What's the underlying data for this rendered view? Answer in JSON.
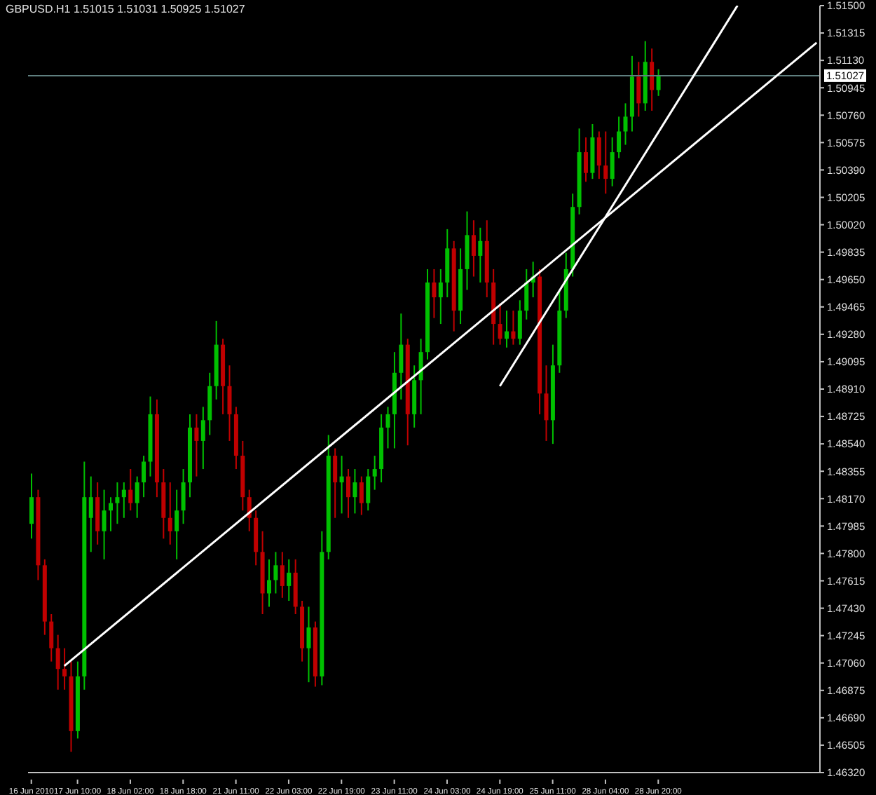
{
  "chart_data": {
    "type": "candlestick",
    "title": "GBPUSD.H1  1.51015 1.51031 1.50925 1.51027",
    "categories": [
      "16 Jun 2010",
      null,
      null,
      null,
      null,
      null,
      null,
      "17 Jun 10:00",
      null,
      null,
      null,
      null,
      null,
      null,
      null,
      "18 Jun 02:00",
      null,
      null,
      null,
      null,
      null,
      null,
      null,
      "18 Jun 18:00",
      null,
      null,
      null,
      null,
      null,
      null,
      null,
      "21 Jun 11:00",
      null,
      null,
      null,
      null,
      null,
      null,
      null,
      "22 Jun 03:00",
      null,
      null,
      null,
      null,
      null,
      null,
      null,
      "22 Jun 19:00",
      null,
      null,
      null,
      null,
      null,
      null,
      null,
      "23 Jun 11:00",
      null,
      null,
      null,
      null,
      null,
      null,
      null,
      "24 Jun 03:00",
      null,
      null,
      null,
      null,
      null,
      null,
      null,
      "24 Jun 19:00",
      null,
      null,
      null,
      null,
      null,
      null,
      null,
      "25 Jun 11:00",
      null,
      null,
      null,
      null,
      null,
      null,
      null,
      "28 Jun 04:00",
      null,
      null,
      null,
      null,
      null,
      null,
      null,
      "28 Jun 20:00",
      null,
      null,
      null,
      null,
      null,
      null,
      null,
      null,
      null,
      null,
      null,
      null,
      null,
      null,
      null,
      null,
      null,
      null,
      null,
      null,
      null,
      null,
      null,
      null
    ],
    "ohlc": [
      [
        1.48,
        1.4834,
        1.479,
        1.4818
      ],
      [
        1.4818,
        1.4823,
        1.4762,
        1.4772
      ],
      [
        1.4772,
        1.4776,
        1.4725,
        1.4734
      ],
      [
        1.4734,
        1.4739,
        1.4707,
        1.4716
      ],
      [
        1.4716,
        1.4725,
        1.4688,
        1.4702
      ],
      [
        1.4702,
        1.4716,
        1.4688,
        1.4697
      ],
      [
        1.4697,
        1.4707,
        1.4646,
        1.466
      ],
      [
        1.466,
        1.4707,
        1.4655,
        1.4697
      ],
      [
        1.4697,
        1.4842,
        1.4688,
        1.4818
      ],
      [
        1.4804,
        1.4832,
        1.4781,
        1.4818
      ],
      [
        1.4818,
        1.4828,
        1.4786,
        1.4795
      ],
      [
        1.4795,
        1.4823,
        1.4776,
        1.4809
      ],
      [
        1.4809,
        1.4818,
        1.4795,
        1.4814
      ],
      [
        1.4814,
        1.4828,
        1.48,
        1.4818
      ],
      [
        1.4818,
        1.4828,
        1.4804,
        1.4823
      ],
      [
        1.4823,
        1.4837,
        1.4809,
        1.4814
      ],
      [
        1.4814,
        1.4832,
        1.4804,
        1.4828
      ],
      [
        1.4828,
        1.4846,
        1.4818,
        1.4842
      ],
      [
        1.4842,
        1.4886,
        1.4832,
        1.4874
      ],
      [
        1.4874,
        1.4884,
        1.4818,
        1.4828
      ],
      [
        1.4828,
        1.4837,
        1.479,
        1.4804
      ],
      [
        1.4804,
        1.4828,
        1.4786,
        1.4795
      ],
      [
        1.4795,
        1.4823,
        1.4776,
        1.4809
      ],
      [
        1.4809,
        1.4837,
        1.48,
        1.4828
      ],
      [
        1.4828,
        1.4874,
        1.4818,
        1.4865
      ],
      [
        1.4865,
        1.4874,
        1.4832,
        1.4856
      ],
      [
        1.4856,
        1.4879,
        1.4837,
        1.487
      ],
      [
        1.487,
        1.4902,
        1.486,
        1.4893
      ],
      [
        1.4893,
        1.4937,
        1.4884,
        1.4921
      ],
      [
        1.4921,
        1.4925,
        1.4874,
        1.4893
      ],
      [
        1.4893,
        1.4907,
        1.4856,
        1.4874
      ],
      [
        1.4874,
        1.4879,
        1.4837,
        1.4846
      ],
      [
        1.4846,
        1.4856,
        1.4809,
        1.4818
      ],
      [
        1.4818,
        1.4823,
        1.4795,
        1.4804
      ],
      [
        1.4804,
        1.4809,
        1.4772,
        1.4781
      ],
      [
        1.4781,
        1.4795,
        1.4739,
        1.4753
      ],
      [
        1.4753,
        1.4776,
        1.4744,
        1.4762
      ],
      [
        1.4762,
        1.4781,
        1.4753,
        1.4772
      ],
      [
        1.4772,
        1.4781,
        1.475,
        1.4758
      ],
      [
        1.4758,
        1.4776,
        1.4748,
        1.4767
      ],
      [
        1.4767,
        1.4776,
        1.4739,
        1.4744
      ],
      [
        1.4744,
        1.4748,
        1.4707,
        1.4716
      ],
      [
        1.4716,
        1.4744,
        1.4693,
        1.473
      ],
      [
        1.473,
        1.4734,
        1.469,
        1.4697
      ],
      [
        1.4697,
        1.4795,
        1.4691,
        1.4781
      ],
      [
        1.4781,
        1.486,
        1.4776,
        1.4846
      ],
      [
        1.4846,
        1.4851,
        1.4804,
        1.4828
      ],
      [
        1.4828,
        1.4846,
        1.4807,
        1.4832
      ],
      [
        1.4832,
        1.4837,
        1.4804,
        1.4818
      ],
      [
        1.4818,
        1.4837,
        1.4807,
        1.4828
      ],
      [
        1.4828,
        1.4832,
        1.4806,
        1.4814
      ],
      [
        1.4814,
        1.4837,
        1.4809,
        1.4832
      ],
      [
        1.4832,
        1.4846,
        1.4823,
        1.4837
      ],
      [
        1.4837,
        1.4874,
        1.4828,
        1.4865
      ],
      [
        1.4865,
        1.4879,
        1.4851,
        1.4874
      ],
      [
        1.4874,
        1.4916,
        1.4851,
        1.4902
      ],
      [
        1.4902,
        1.4942,
        1.4884,
        1.4921
      ],
      [
        1.4921,
        1.4925,
        1.4853,
        1.4874
      ],
      [
        1.4874,
        1.4907,
        1.4865,
        1.4897
      ],
      [
        1.4897,
        1.4925,
        1.4874,
        1.4916
      ],
      [
        1.4916,
        1.4972,
        1.4911,
        1.4963
      ],
      [
        1.4963,
        1.4972,
        1.4939,
        1.4953
      ],
      [
        1.4953,
        1.4972,
        1.4935,
        1.4963
      ],
      [
        1.4963,
        1.4999,
        1.4953,
        1.4986
      ],
      [
        1.4986,
        1.4991,
        1.493,
        1.4944
      ],
      [
        1.4944,
        1.4986,
        1.4935,
        1.4972
      ],
      [
        1.4972,
        1.5011,
        1.4958,
        1.4995
      ],
      [
        1.4995,
        1.5005,
        1.4967,
        1.4981
      ],
      [
        1.4981,
        1.5,
        1.4963,
        1.4991
      ],
      [
        1.4991,
        1.5005,
        1.4953,
        1.4963
      ],
      [
        1.4963,
        1.4972,
        1.4921,
        1.4935
      ],
      [
        1.4935,
        1.4949,
        1.4921,
        1.4925
      ],
      [
        1.4925,
        1.4944,
        1.4919,
        1.493
      ],
      [
        1.493,
        1.4944,
        1.4921,
        1.4925
      ],
      [
        1.4925,
        1.4951,
        1.4921,
        1.4944
      ],
      [
        1.4944,
        1.4972,
        1.4938,
        1.4963
      ],
      [
        1.4963,
        1.4977,
        1.4953,
        1.4967
      ],
      [
        1.4967,
        1.4972,
        1.4874,
        1.4888
      ],
      [
        1.4888,
        1.4907,
        1.4856,
        1.487
      ],
      [
        1.487,
        1.4921,
        1.4854,
        1.4907
      ],
      [
        1.4907,
        1.4958,
        1.4902,
        1.4944
      ],
      [
        1.4944,
        1.4983,
        1.4939,
        1.4972
      ],
      [
        1.4972,
        1.5023,
        1.4967,
        1.5014
      ],
      [
        1.5014,
        1.5067,
        1.5009,
        1.5051
      ],
      [
        1.5051,
        1.5061,
        1.5031,
        1.5037
      ],
      [
        1.5037,
        1.507,
        1.5033,
        1.5061
      ],
      [
        1.5061,
        1.5065,
        1.5033,
        1.5042
      ],
      [
        1.5042,
        1.5065,
        1.5023,
        1.5033
      ],
      [
        1.5033,
        1.5061,
        1.5028,
        1.5051
      ],
      [
        1.5051,
        1.5075,
        1.5047,
        1.5065
      ],
      [
        1.5065,
        1.5084,
        1.5056,
        1.5075
      ],
      [
        1.5075,
        1.5116,
        1.5065,
        1.5102
      ],
      [
        1.5102,
        1.5112,
        1.5075,
        1.5084
      ],
      [
        1.5084,
        1.5126,
        1.5079,
        1.5112
      ],
      [
        1.5112,
        1.5121,
        1.5079,
        1.5093
      ],
      [
        1.5093,
        1.5107,
        1.5089,
        1.5103
      ],
      null,
      null,
      null,
      null,
      null,
      null,
      null,
      null,
      null,
      null,
      null,
      null,
      null,
      null,
      null,
      null,
      null,
      null,
      null,
      null,
      null,
      null,
      null,
      null
    ],
    "colors": [
      "#00c000",
      "#c00000",
      "#c00000",
      "#c00000",
      "#c00000",
      "#c00000",
      "#c00000",
      "#00c000",
      "#00c000",
      "#00c000",
      "#c00000",
      "#00c000",
      "#00c000",
      "#00c000",
      "#00c000",
      "#c00000",
      "#00c000",
      "#00c000",
      "#00c000",
      "#c00000",
      "#c00000",
      "#c00000",
      "#00c000",
      "#00c000",
      "#00c000",
      "#c00000",
      "#00c000",
      "#00c000",
      "#00c000",
      "#c00000",
      "#c00000",
      "#c00000",
      "#c00000",
      "#c00000",
      "#c00000",
      "#c00000",
      "#00c000",
      "#00c000",
      "#c00000",
      "#00c000",
      "#c00000",
      "#c00000",
      "#00c000",
      "#c00000",
      "#00c000",
      "#00c000",
      "#c00000",
      "#00c000",
      "#c00000",
      "#00c000",
      "#c00000",
      "#00c000",
      "#00c000",
      "#00c000",
      "#00c000",
      "#00c000",
      "#00c000",
      "#c00000",
      "#00c000",
      "#00c000",
      "#00c000",
      "#c00000",
      "#00c000",
      "#00c000",
      "#c00000",
      "#00c000",
      "#00c000",
      "#c00000",
      "#00c000",
      "#c00000",
      "#c00000",
      "#c00000",
      "#00c000",
      "#c00000",
      "#00c000",
      "#00c000",
      "#00c000",
      "#c00000",
      "#c00000",
      "#00c000",
      "#00c000",
      "#00c000",
      "#00c000",
      "#00c000",
      "#c00000",
      "#00c000",
      "#c00000",
      "#c00000",
      "#00c000",
      "#00c000",
      "#00c000",
      "#00c000",
      "#c00000",
      "#00c000",
      "#c00000",
      "#00c000",
      null,
      null,
      null,
      null,
      null,
      null,
      null,
      null,
      null,
      null,
      null,
      null,
      null,
      null,
      null,
      null,
      null,
      null,
      null,
      null,
      null,
      null,
      null,
      null
    ],
    "series": [
      {
        "type": "line",
        "color": "#ffffff",
        "values": [
          null,
          null,
          null,
          null,
          null,
          1.4704,
          null,
          null,
          null,
          null,
          null,
          null,
          null,
          null,
          null,
          null,
          null,
          null,
          null,
          null,
          null,
          null,
          null,
          null,
          null,
          null,
          null,
          null,
          null,
          null,
          null,
          null,
          null,
          null,
          null,
          null,
          null,
          null,
          null,
          null,
          null,
          null,
          null,
          null,
          null,
          null,
          null,
          null,
          null,
          null,
          null,
          null,
          null,
          null,
          null,
          null,
          null,
          null,
          null,
          null,
          null,
          null,
          null,
          null,
          null,
          null,
          null,
          null,
          null,
          null,
          null,
          null,
          null,
          null,
          null,
          null,
          null,
          null,
          null,
          null,
          null,
          null,
          null,
          null,
          null,
          null,
          null,
          null,
          null,
          null,
          null,
          null,
          null,
          null,
          null,
          null,
          null,
          null,
          null,
          null,
          null,
          null,
          null,
          null,
          null,
          null,
          null,
          null,
          null,
          null,
          null,
          null,
          null,
          null,
          null,
          null,
          null,
          null,
          null,
          1.5125
        ]
      },
      {
        "type": "line",
        "color": "#ffffff",
        "values": [
          null,
          null,
          null,
          null,
          null,
          null,
          null,
          null,
          null,
          null,
          null,
          null,
          null,
          null,
          null,
          null,
          null,
          null,
          null,
          null,
          null,
          null,
          null,
          null,
          null,
          null,
          null,
          null,
          null,
          null,
          null,
          null,
          null,
          null,
          null,
          null,
          null,
          null,
          null,
          null,
          null,
          null,
          null,
          null,
          null,
          null,
          null,
          null,
          null,
          null,
          null,
          null,
          null,
          null,
          null,
          null,
          null,
          null,
          null,
          null,
          null,
          null,
          null,
          null,
          null,
          null,
          null,
          null,
          null,
          null,
          null,
          1.4893,
          null,
          null,
          null,
          null,
          null,
          null,
          null,
          null,
          null,
          null,
          null,
          null,
          null,
          null,
          null,
          null,
          null,
          null,
          null,
          null,
          null,
          null,
          null,
          null,
          null,
          null,
          null,
          null,
          null,
          null,
          null,
          null,
          null,
          null,
          null,
          1.515,
          null,
          null,
          null,
          null,
          null,
          null,
          null,
          null,
          null,
          null,
          null,
          null
        ]
      }
    ],
    "ylim": [
      1.4632,
      1.515
    ],
    "yticks": [
      {
        "value": 1.4632,
        "label": "1.46320"
      },
      {
        "value": 1.46505,
        "label": "1.46505"
      },
      {
        "value": 1.4669,
        "label": "1.46690"
      },
      {
        "value": 1.46875,
        "label": "1.46875"
      },
      {
        "value": 1.4706,
        "label": "1.47060"
      },
      {
        "value": 1.47245,
        "label": "1.47245"
      },
      {
        "value": 1.4743,
        "label": "1.47430"
      },
      {
        "value": 1.47615,
        "label": "1.47615"
      },
      {
        "value": 1.478,
        "label": "1.47800"
      },
      {
        "value": 1.47985,
        "label": "1.47985"
      },
      {
        "value": 1.4817,
        "label": "1.48170"
      },
      {
        "value": 1.48355,
        "label": "1.48355"
      },
      {
        "value": 1.4854,
        "label": "1.48540"
      },
      {
        "value": 1.48725,
        "label": "1.48725"
      },
      {
        "value": 1.4891,
        "label": "1.48910"
      },
      {
        "value": 1.49095,
        "label": "1.49095"
      },
      {
        "value": 1.4928,
        "label": "1.49280"
      },
      {
        "value": 1.49465,
        "label": "1.49465"
      },
      {
        "value": 1.4965,
        "label": "1.49650"
      },
      {
        "value": 1.49835,
        "label": "1.49835"
      },
      {
        "value": 1.5002,
        "label": "1.50020"
      },
      {
        "value": 1.50205,
        "label": "1.50205"
      },
      {
        "value": 1.5039,
        "label": "1.50390"
      },
      {
        "value": 1.50575,
        "label": "1.50575"
      },
      {
        "value": 1.5076,
        "label": "1.50760"
      },
      {
        "value": 1.50945,
        "label": "1.50945"
      },
      {
        "value": 1.5113,
        "label": "1.51130"
      },
      {
        "value": 1.51315,
        "label": "1.51315"
      },
      {
        "value": 1.515,
        "label": "1.51500"
      }
    ],
    "ref_lines": [
      {
        "axis": "y",
        "value": 1.51027,
        "label": "1.51027",
        "color": "#5f7f7f"
      }
    ]
  }
}
